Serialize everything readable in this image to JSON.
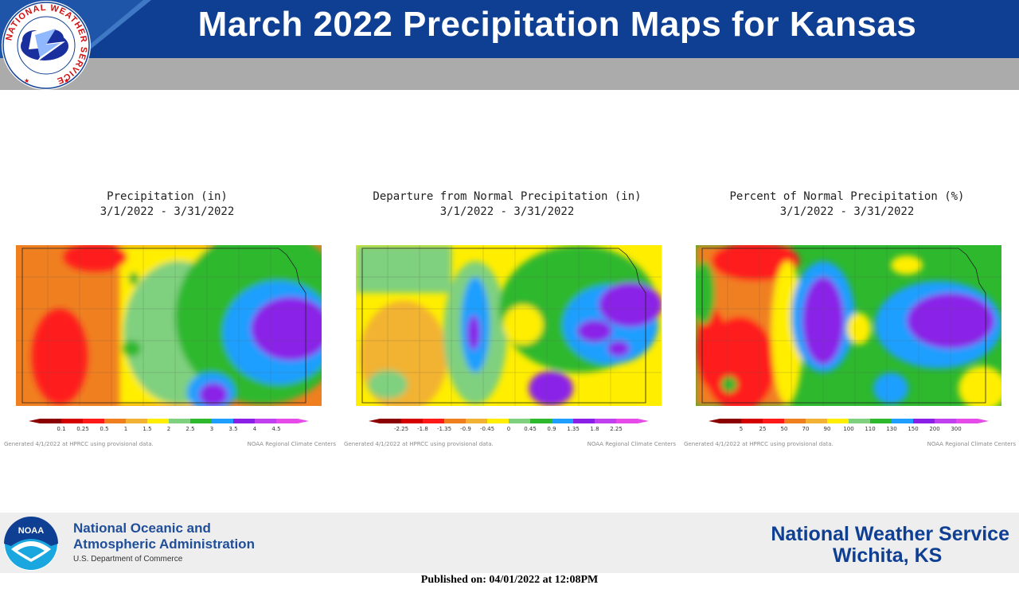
{
  "header": {
    "title": "March 2022 Precipitation Maps for Kansas",
    "colors": {
      "bar": "#0f3f93",
      "subbar": "#ababab"
    }
  },
  "nws_logo": {
    "ring_text": "NATIONAL WEATHER SERVICE",
    "icon": "nws-seal-icon"
  },
  "panels": [
    {
      "title": "Precipitation (in)",
      "dates": "3/1/2022 - 3/31/2022",
      "legend_labels": [
        "0.1",
        "0.25",
        "0.5",
        "1",
        "1.5",
        "2",
        "2.5",
        "3",
        "3.5",
        "4",
        "4.5"
      ],
      "legend_colors": [
        "#8b0000",
        "#d40000",
        "#ff1a1a",
        "#f07f20",
        "#f2b233",
        "#ffee00",
        "#7fd07f",
        "#2db82d",
        "#1e9fff",
        "#8a20e8",
        "#c040f0",
        "#e64ae8"
      ],
      "generated": "Generated 4/1/2022 at HPRCC using provisional data.",
      "source": "NOAA Regional Climate Centers"
    },
    {
      "title": "Departure from Normal Precipitation (in)",
      "dates": "3/1/2022 - 3/31/2022",
      "legend_labels": [
        "-2.25",
        "-1.8",
        "-1.35",
        "-0.9",
        "-0.45",
        "0",
        "0.45",
        "0.9",
        "1.35",
        "1.8",
        "2.25"
      ],
      "legend_colors": [
        "#8b0000",
        "#d40000",
        "#ff1a1a",
        "#f07f20",
        "#f2b233",
        "#ffee00",
        "#7fd07f",
        "#2db82d",
        "#1e9fff",
        "#8a20e8",
        "#c040f0",
        "#e64ae8"
      ],
      "generated": "Generated 4/1/2022 at HPRCC using provisional data.",
      "source": "NOAA Regional Climate Centers"
    },
    {
      "title": "Percent of Normal Precipitation (%)",
      "dates": "3/1/2022 - 3/31/2022",
      "legend_labels": [
        "5",
        "25",
        "50",
        "70",
        "90",
        "100",
        "110",
        "130",
        "150",
        "200",
        "300"
      ],
      "legend_colors": [
        "#8b0000",
        "#d40000",
        "#ff1a1a",
        "#f07f20",
        "#f2b233",
        "#ffee00",
        "#7fd07f",
        "#2db82d",
        "#1e9fff",
        "#8a20e8",
        "#c040f0",
        "#e64ae8"
      ],
      "generated": "Generated 4/1/2022 at HPRCC using provisional data.",
      "source": "NOAA Regional Climate Centers"
    }
  ],
  "footer": {
    "noaa_line1": "National Oceanic and",
    "noaa_line2": "Atmospheric Administration",
    "noaa_dept": "U.S. Department of Commerce",
    "nws_name": "National Weather Service",
    "nws_office": "Wichita, KS",
    "noaa_logo_text": "NOAA",
    "noaa_logo_icon": "noaa-bird-icon"
  },
  "published": "Published on: 04/01/2022 at 12:08PM"
}
